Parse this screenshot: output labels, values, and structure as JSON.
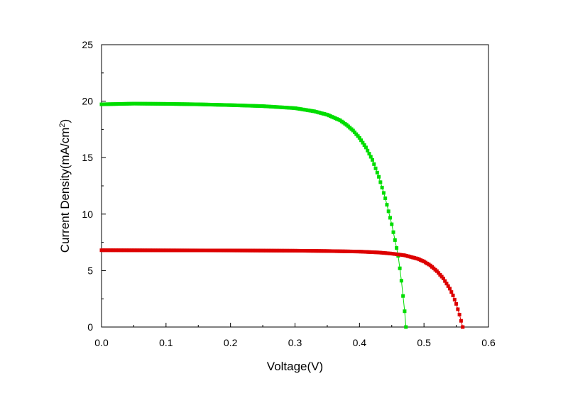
{
  "chart_data": {
    "type": "scatter",
    "xlabel": "Voltage(V)",
    "ylabel": "Current Density(mA/cm²)",
    "ylabel_main": "Current Density(mA/cm",
    "ylabel_sup": "2",
    "ylabel_end": ")",
    "xlim": [
      0.0,
      0.6
    ],
    "ylim": [
      0,
      25
    ],
    "xticks": [
      0.0,
      0.1,
      0.2,
      0.3,
      0.4,
      0.5,
      0.6
    ],
    "xtick_labels": [
      "0.0",
      "0.1",
      "0.2",
      "0.3",
      "0.4",
      "0.5",
      "0.6"
    ],
    "yticks": [
      0,
      5,
      10,
      15,
      20,
      25
    ],
    "ytick_labels": [
      "0",
      "5",
      "10",
      "15",
      "20",
      "25"
    ],
    "grid": false,
    "legend": "none",
    "series": [
      {
        "color": "#00dd00",
        "marker": "square",
        "connect_line": true,
        "points": [
          [
            0.0,
            19.72
          ],
          [
            0.05,
            19.78
          ],
          [
            0.1,
            19.76
          ],
          [
            0.15,
            19.72
          ],
          [
            0.2,
            19.65
          ],
          [
            0.25,
            19.56
          ],
          [
            0.3,
            19.38
          ],
          [
            0.33,
            19.1
          ],
          [
            0.35,
            18.8
          ],
          [
            0.37,
            18.3
          ],
          [
            0.38,
            17.9
          ],
          [
            0.39,
            17.4
          ],
          [
            0.4,
            16.75
          ],
          [
            0.41,
            15.9
          ],
          [
            0.42,
            14.8
          ],
          [
            0.43,
            13.3
          ],
          [
            0.44,
            11.4
          ],
          [
            0.45,
            9.1
          ],
          [
            0.46,
            6.3
          ],
          [
            0.465,
            4.1
          ],
          [
            0.47,
            1.4
          ],
          [
            0.472,
            0.0
          ]
        ]
      },
      {
        "color": "#dd0000",
        "marker": "square",
        "connect_line": true,
        "points": [
          [
            0.0,
            6.8
          ],
          [
            0.1,
            6.79
          ],
          [
            0.2,
            6.78
          ],
          [
            0.3,
            6.76
          ],
          [
            0.35,
            6.73
          ],
          [
            0.4,
            6.68
          ],
          [
            0.43,
            6.6
          ],
          [
            0.45,
            6.5
          ],
          [
            0.47,
            6.35
          ],
          [
            0.49,
            6.05
          ],
          [
            0.5,
            5.8
          ],
          [
            0.51,
            5.45
          ],
          [
            0.52,
            4.95
          ],
          [
            0.53,
            4.3
          ],
          [
            0.54,
            3.4
          ],
          [
            0.545,
            2.8
          ],
          [
            0.55,
            2.05
          ],
          [
            0.555,
            1.1
          ],
          [
            0.56,
            0.0
          ]
        ]
      }
    ]
  }
}
